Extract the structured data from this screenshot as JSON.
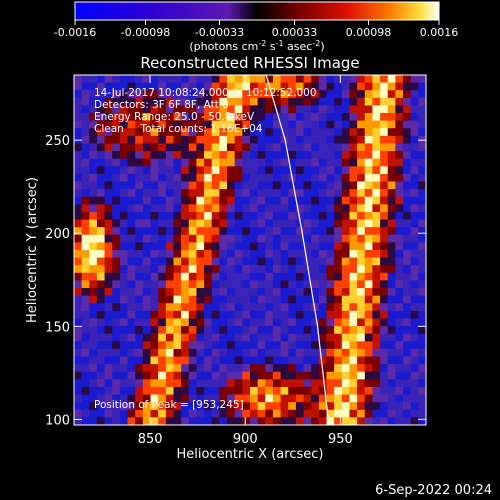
{
  "chart_data": {
    "type": "heatmap",
    "title": "Reconstructed RHESSI Image",
    "xlabel": "Heliocentric X (arcsec)",
    "ylabel": "Heliocentric Y (arcsec)",
    "x_ticks": [
      "850",
      "900",
      "950"
    ],
    "y_ticks": [
      "100",
      "150",
      "200",
      "250"
    ],
    "x_tick_values": [
      850,
      900,
      950
    ],
    "y_tick_values": [
      100,
      150,
      200,
      250
    ],
    "xlim": [
      810,
      995
    ],
    "ylim": [
      97,
      285
    ],
    "colorbar": {
      "ticks": [
        "-0.0016",
        "-0.00098",
        "-0.00033",
        "0.00033",
        "0.00098",
        "0.0016"
      ],
      "tick_values": [
        -0.0016,
        -0.00098,
        -0.00033,
        0.00033,
        0.00098,
        0.0016
      ],
      "range": [
        -0.0016,
        0.0016
      ],
      "units_prefix": "(photons cm",
      "units_exp1": "-2",
      "units_mid1": " s",
      "units_exp2": "-1",
      "units_mid2": " asec",
      "units_exp3": "-2",
      "units_suffix": ")"
    },
    "annotations": [
      "14-Jul-2017 10:08:24.000 to 10:12:52.000",
      "Detectors: 3F 6F 8F, Att 0",
      "Energy Range: 25.0 - 50.0 keV",
      "Clean     Total counts: 1.16E+04"
    ],
    "peak_label": "Position of Peak = [953,245]",
    "limb_curve": [
      [
        911,
        285
      ],
      [
        921,
        250
      ],
      [
        930,
        200
      ],
      [
        938,
        150
      ],
      [
        944,
        97
      ]
    ]
  },
  "footer_date": "6-Sep-2022 00:24"
}
